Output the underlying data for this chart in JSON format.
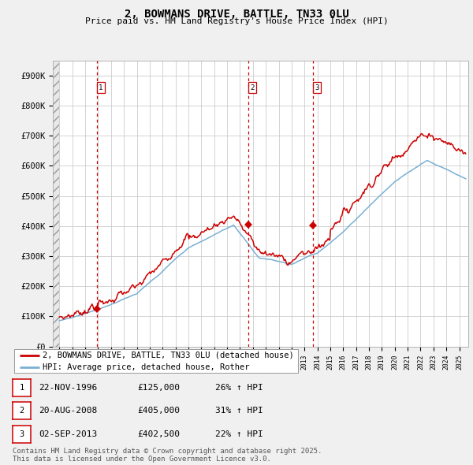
{
  "title": "2, BOWMANS DRIVE, BATTLE, TN33 0LU",
  "subtitle": "Price paid vs. HM Land Registry's House Price Index (HPI)",
  "ylabel_values": [
    "£0",
    "£100K",
    "£200K",
    "£300K",
    "£400K",
    "£500K",
    "£600K",
    "£700K",
    "£800K",
    "£900K"
  ],
  "yticks": [
    0,
    100000,
    200000,
    300000,
    400000,
    500000,
    600000,
    700000,
    800000,
    900000
  ],
  "ylim": [
    0,
    950000
  ],
  "xlim_start": 1993.5,
  "xlim_end": 2025.7,
  "price_paid_color": "#cc0000",
  "hpi_color": "#7ab0d4",
  "background_color": "#f0f0f0",
  "plot_bg_color": "#ffffff",
  "grid_color": "#cccccc",
  "sale_markers": [
    {
      "year": 1996.9,
      "price": 125000,
      "label": "1"
    },
    {
      "year": 2008.65,
      "price": 405000,
      "label": "2"
    },
    {
      "year": 2013.67,
      "price": 402500,
      "label": "3"
    }
  ],
  "legend_entries": [
    "2, BOWMANS DRIVE, BATTLE, TN33 0LU (detached house)",
    "HPI: Average price, detached house, Rother"
  ],
  "table_rows": [
    [
      "1",
      "22-NOV-1996",
      "£125,000",
      "26% ↑ HPI"
    ],
    [
      "2",
      "20-AUG-2008",
      "£405,000",
      "31% ↑ HPI"
    ],
    [
      "3",
      "02-SEP-2013",
      "£402,500",
      "22% ↑ HPI"
    ]
  ],
  "footer_text": "Contains HM Land Registry data © Crown copyright and database right 2025.\nThis data is licensed under the Open Government Licence v3.0.",
  "title_fontsize": 10,
  "subtitle_fontsize": 8,
  "axis_fontsize": 7.5,
  "legend_fontsize": 7.5,
  "table_fontsize": 8,
  "footer_fontsize": 6.5
}
